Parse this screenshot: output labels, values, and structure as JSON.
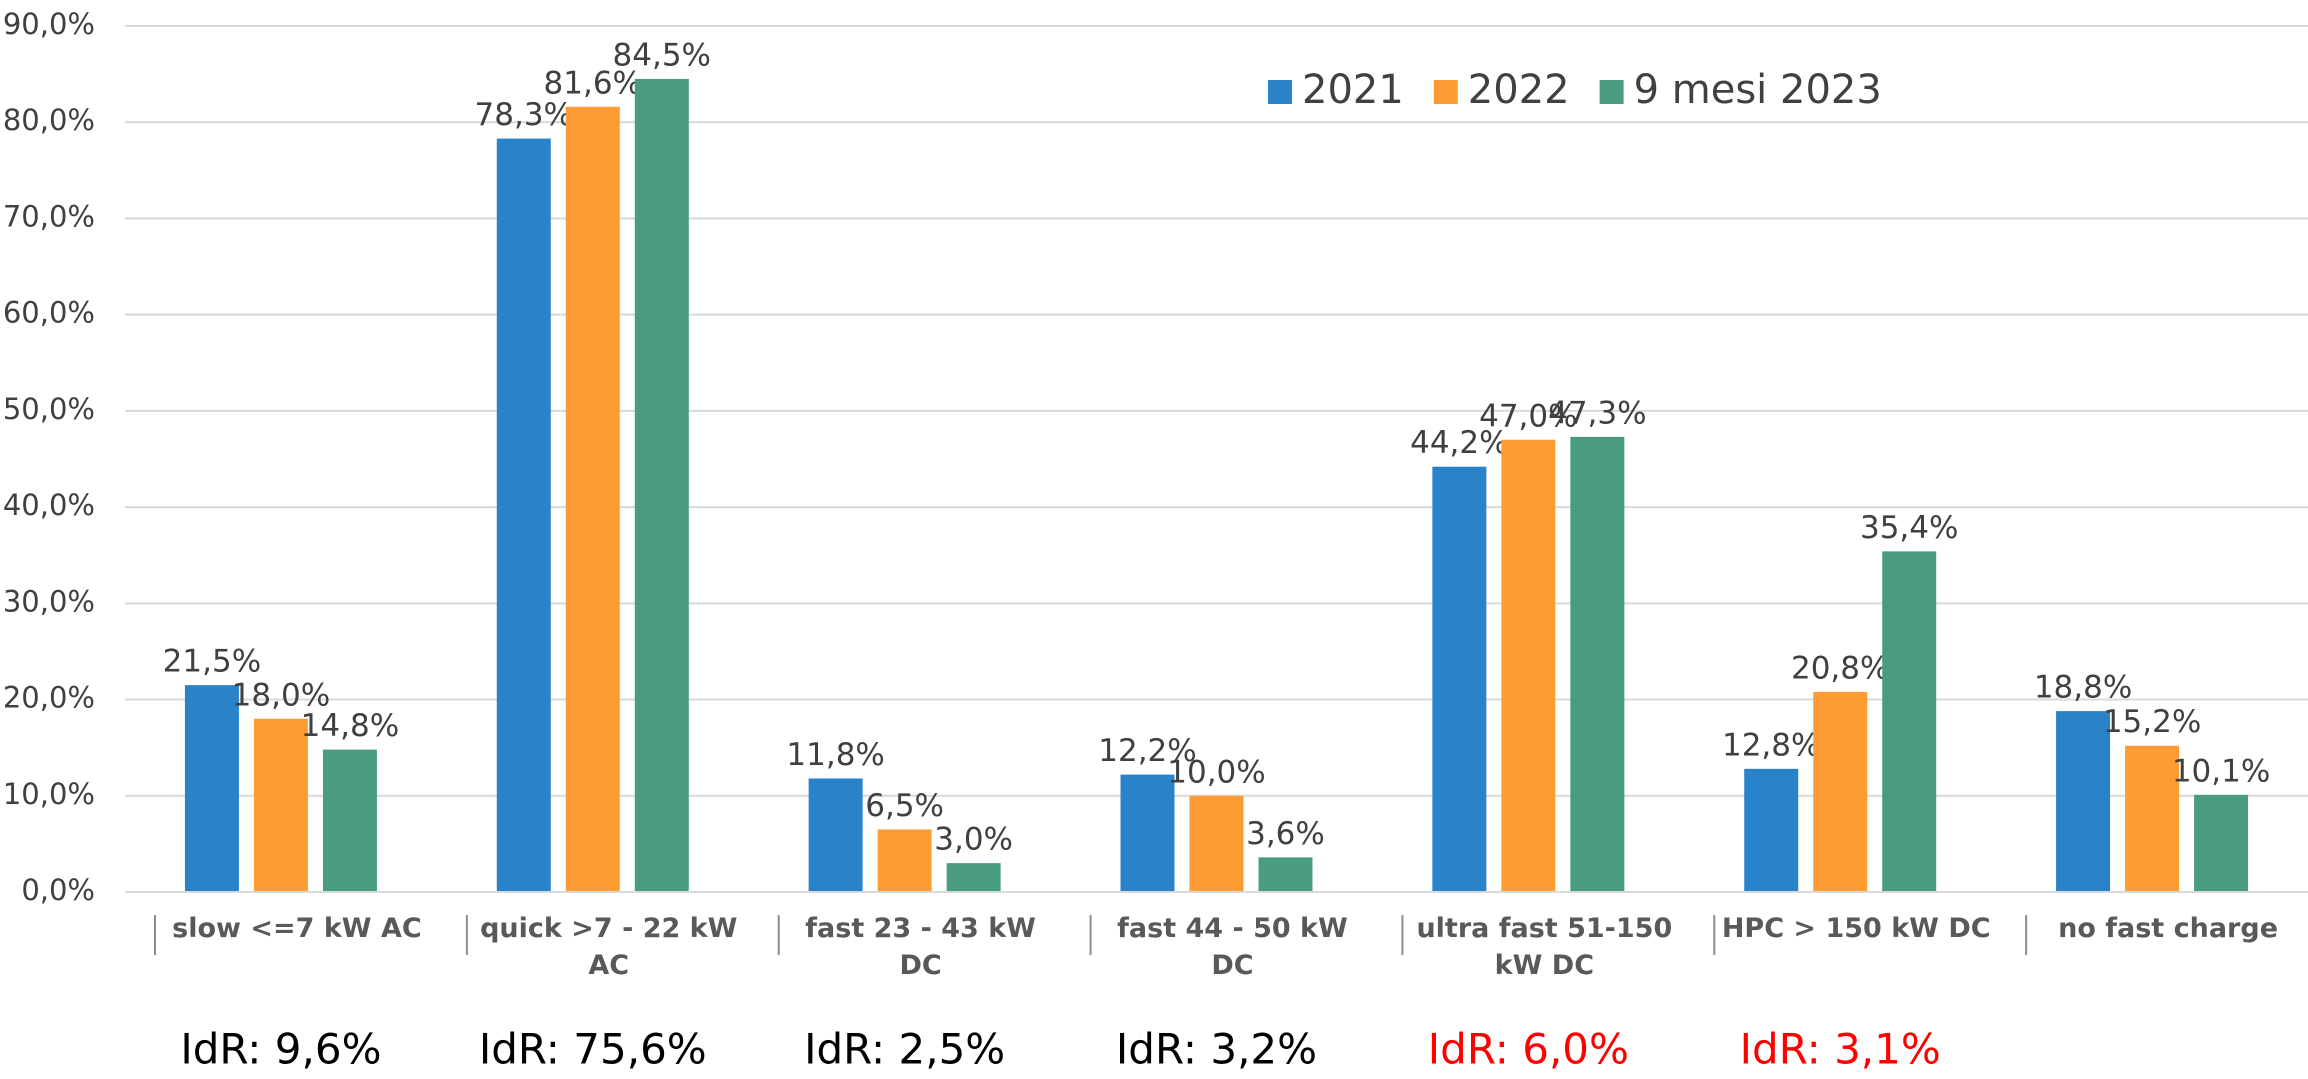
{
  "chart_data": {
    "type": "bar",
    "categories": [
      "slow <=7 kW AC",
      "quick >7 - 22 kW AC",
      "fast 23 - 43 kW DC",
      "fast 44 - 50 kW DC",
      "ultra fast 51-150 kW DC",
      "HPC > 150 kW DC",
      "no fast charge"
    ],
    "series": [
      {
        "name": "2021",
        "color": "#2a83c8",
        "values": [
          21.5,
          78.3,
          11.8,
          12.2,
          44.2,
          12.8,
          18.8
        ],
        "value_labels": [
          "21,5%",
          "78,3%",
          "11,8%",
          "12,2%",
          "44,2%",
          "12,8%",
          "18,8%"
        ]
      },
      {
        "name": "2022",
        "color": "#fd9c35",
        "values": [
          18.0,
          81.6,
          6.5,
          10.0,
          47.0,
          20.8,
          15.2
        ],
        "value_labels": [
          "18,0%",
          "81,6%",
          "6,5%",
          "10,0%",
          "47,0%",
          "20,8%",
          "15,2%"
        ]
      },
      {
        "name": "9 mesi 2023",
        "color": "#4a9c80",
        "values": [
          14.8,
          84.5,
          3.0,
          3.6,
          47.3,
          35.4,
          10.1
        ],
        "value_labels": [
          "14,8%",
          "84,5%",
          "3,0%",
          "3,6%",
          "47,3%",
          "35,4%",
          "10,1%"
        ]
      }
    ],
    "ylim": [
      0,
      90
    ],
    "yticks": [
      {
        "value": 0,
        "label": "0,0%"
      },
      {
        "value": 10,
        "label": "10,0%"
      },
      {
        "value": 20,
        "label": "20,0%"
      },
      {
        "value": 30,
        "label": "30,0%"
      },
      {
        "value": 40,
        "label": "40,0%"
      },
      {
        "value": 50,
        "label": "50,0%"
      },
      {
        "value": 60,
        "label": "60,0%"
      },
      {
        "value": 70,
        "label": "70,0%"
      },
      {
        "value": 80,
        "label": "80,0%"
      },
      {
        "value": 90,
        "label": "90,0%"
      }
    ],
    "grid": true,
    "legend": "top",
    "annotations": [
      {
        "text": "IdR: 9,6%",
        "color": "#000000"
      },
      {
        "text": "IdR: 75,6%",
        "color": "#000000"
      },
      {
        "text": "IdR: 2,5%",
        "color": "#000000"
      },
      {
        "text": "IdR: 3,2%",
        "color": "#000000"
      },
      {
        "text": "IdR: 6,0%",
        "color": "#ff0000"
      },
      {
        "text": "IdR: 3,1%",
        "color": "#ff0000"
      }
    ]
  }
}
